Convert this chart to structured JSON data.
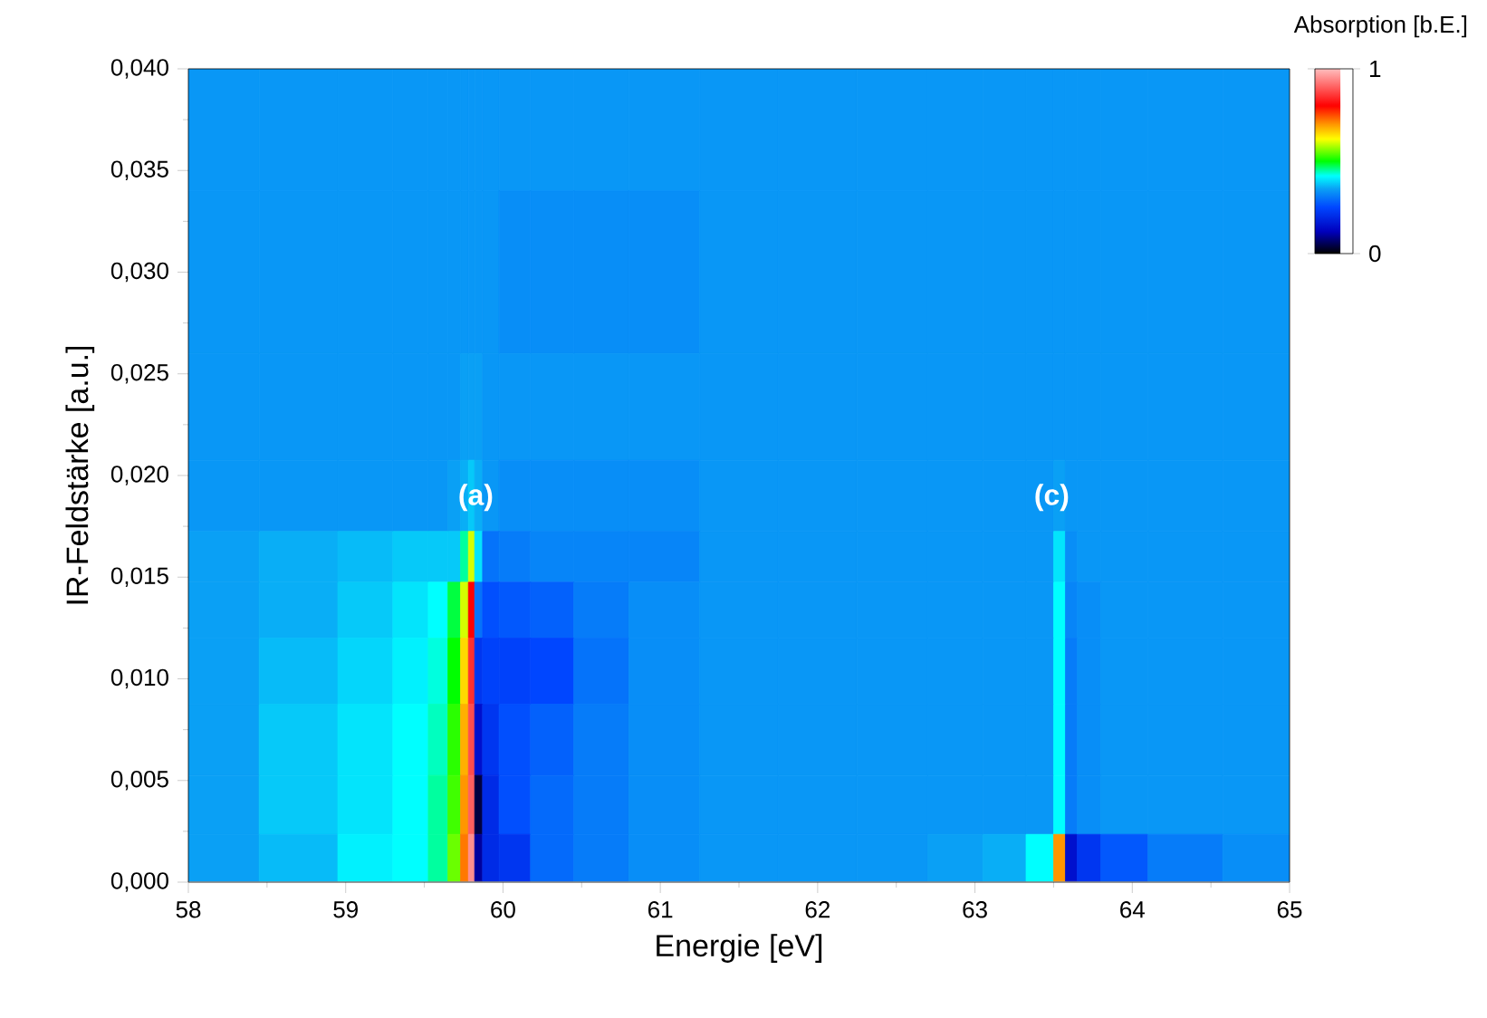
{
  "chart_data": {
    "type": "heatmap",
    "xlabel": "Energie [eV]",
    "ylabel": "IR-Feldstärke [a.u.]",
    "clabel": "Absorption [b.E.]",
    "xlim": [
      58,
      65
    ],
    "xticks": [
      58,
      59,
      60,
      61,
      62,
      63,
      64,
      65
    ],
    "ylim": [
      0,
      0.04
    ],
    "yticks": [
      {
        "value": 0,
        "label": "0,000"
      },
      {
        "value": 0.005,
        "label": "0,005"
      },
      {
        "value": 0.01,
        "label": "0,010"
      },
      {
        "value": 0.015,
        "label": "0,015"
      },
      {
        "value": 0.02,
        "label": "0,020"
      },
      {
        "value": 0.025,
        "label": "0,025"
      },
      {
        "value": 0.03,
        "label": "0,030"
      },
      {
        "value": 0.035,
        "label": "0,035"
      },
      {
        "value": 0.04,
        "label": "0,040"
      }
    ],
    "clim": [
      0,
      1
    ],
    "cticks": [
      0,
      1
    ],
    "x": [
      58.15,
      58.75,
      59.15,
      59.45,
      59.6,
      59.7,
      59.76,
      59.8,
      59.84,
      59.9,
      60.05,
      60.3,
      60.6,
      61.0,
      61.5,
      62.0,
      62.5,
      62.9,
      63.2,
      63.45,
      63.55,
      63.6,
      63.7,
      63.9,
      64.3,
      64.85
    ],
    "y": [
      0.039,
      0.029,
      0.023,
      0.0185,
      0.016,
      0.0135,
      0.0105,
      0.007,
      0.0035,
      0.0012
    ],
    "cells": [
      [
        0.34,
        0.34,
        0.34,
        0.34,
        0.34,
        0.34,
        0.34,
        0.34,
        0.34,
        0.34,
        0.34,
        0.34,
        0.34,
        0.34,
        0.34,
        0.34,
        0.34,
        0.34,
        0.34,
        0.34,
        0.34,
        0.34,
        0.34,
        0.34,
        0.34,
        0.34
      ],
      [
        0.34,
        0.34,
        0.34,
        0.34,
        0.34,
        0.34,
        0.34,
        0.34,
        0.34,
        0.34,
        0.33,
        0.33,
        0.33,
        0.33,
        0.34,
        0.34,
        0.34,
        0.34,
        0.34,
        0.34,
        0.34,
        0.34,
        0.34,
        0.34,
        0.34,
        0.34
      ],
      [
        0.34,
        0.34,
        0.34,
        0.34,
        0.34,
        0.34,
        0.35,
        0.35,
        0.35,
        0.34,
        0.34,
        0.34,
        0.34,
        0.34,
        0.34,
        0.34,
        0.34,
        0.34,
        0.34,
        0.34,
        0.34,
        0.34,
        0.34,
        0.34,
        0.34,
        0.34
      ],
      [
        0.34,
        0.34,
        0.34,
        0.34,
        0.34,
        0.35,
        0.36,
        0.38,
        0.36,
        0.34,
        0.33,
        0.33,
        0.33,
        0.33,
        0.34,
        0.34,
        0.34,
        0.34,
        0.34,
        0.34,
        0.35,
        0.34,
        0.34,
        0.34,
        0.34,
        0.34
      ],
      [
        0.35,
        0.36,
        0.37,
        0.38,
        0.38,
        0.38,
        0.45,
        0.6,
        0.4,
        0.3,
        0.31,
        0.32,
        0.32,
        0.32,
        0.34,
        0.34,
        0.34,
        0.34,
        0.34,
        0.34,
        0.4,
        0.33,
        0.34,
        0.34,
        0.34,
        0.34
      ],
      [
        0.35,
        0.36,
        0.38,
        0.4,
        0.42,
        0.48,
        0.6,
        0.8,
        0.3,
        0.26,
        0.27,
        0.28,
        0.31,
        0.33,
        0.34,
        0.34,
        0.34,
        0.34,
        0.34,
        0.34,
        0.42,
        0.32,
        0.33,
        0.34,
        0.34,
        0.34
      ],
      [
        0.35,
        0.37,
        0.39,
        0.41,
        0.43,
        0.5,
        0.65,
        0.85,
        0.22,
        0.24,
        0.24,
        0.25,
        0.3,
        0.33,
        0.34,
        0.34,
        0.34,
        0.34,
        0.34,
        0.34,
        0.42,
        0.31,
        0.33,
        0.34,
        0.34,
        0.34
      ],
      [
        0.35,
        0.38,
        0.4,
        0.42,
        0.44,
        0.52,
        0.68,
        0.88,
        0.15,
        0.22,
        0.26,
        0.28,
        0.31,
        0.33,
        0.34,
        0.34,
        0.34,
        0.34,
        0.34,
        0.34,
        0.42,
        0.31,
        0.33,
        0.34,
        0.34,
        0.34
      ],
      [
        0.35,
        0.38,
        0.4,
        0.42,
        0.45,
        0.53,
        0.7,
        0.9,
        0.04,
        0.2,
        0.26,
        0.29,
        0.31,
        0.33,
        0.34,
        0.34,
        0.34,
        0.34,
        0.34,
        0.34,
        0.42,
        0.31,
        0.33,
        0.34,
        0.34,
        0.34
      ],
      [
        0.35,
        0.37,
        0.41,
        0.42,
        0.45,
        0.55,
        0.72,
        0.95,
        0.1,
        0.2,
        0.22,
        0.29,
        0.31,
        0.33,
        0.34,
        0.34,
        0.34,
        0.35,
        0.36,
        0.42,
        0.7,
        0.15,
        0.22,
        0.27,
        0.31,
        0.33
      ]
    ],
    "annotations": [
      "(a)",
      "(c)"
    ]
  }
}
